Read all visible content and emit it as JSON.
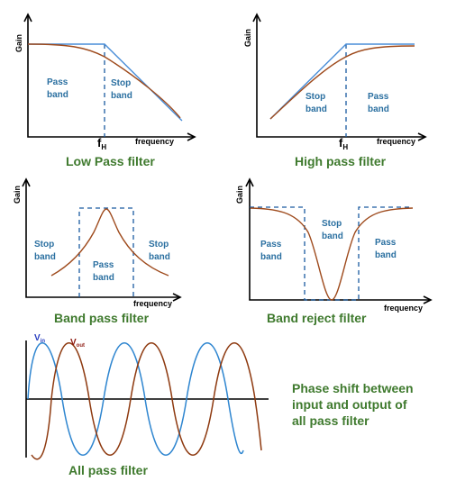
{
  "panels": {
    "low_pass": {
      "caption": "Low Pass filter",
      "y_axis": "Gain",
      "x_axis": "frequency",
      "cutoff_main": "f",
      "cutoff_sub": "H",
      "band_left": [
        "Pass",
        "band"
      ],
      "band_right": [
        "Stop",
        "band"
      ]
    },
    "high_pass": {
      "caption": "High pass filter",
      "y_axis": "Gain",
      "x_axis": "frequency",
      "cutoff_main": "f",
      "cutoff_sub": "H",
      "band_left": [
        "Stop",
        "band"
      ],
      "band_right": [
        "Pass",
        "band"
      ]
    },
    "band_pass": {
      "caption": "Band pass filter",
      "y_axis": "Gain",
      "x_axis": "frequency",
      "band_left": [
        "Stop",
        "band"
      ],
      "band_middle": [
        "Pass",
        "band"
      ],
      "band_right": [
        "Stop",
        "band"
      ]
    },
    "band_reject": {
      "caption": "Band reject filter",
      "y_axis": "Gain",
      "x_axis": "frequency",
      "band_left": [
        "Pass",
        "band"
      ],
      "band_middle": [
        "Stop",
        "band"
      ],
      "band_right": [
        "Pass",
        "band"
      ]
    },
    "all_pass": {
      "caption": "All pass filter",
      "vin_main": "V",
      "vin_sub": "in",
      "vout_main": "V",
      "vout_sub": "out",
      "description": [
        "Phase shift between",
        "input and output of",
        "all pass filter"
      ]
    }
  },
  "colors": {
    "caption": "#3f7a2e",
    "band_text": "#2a6fa0",
    "ideal_response": "#4a8ed8",
    "real_response": "#9e4a1c",
    "vin": "#2f86d0",
    "vout": "#8e3a10"
  }
}
